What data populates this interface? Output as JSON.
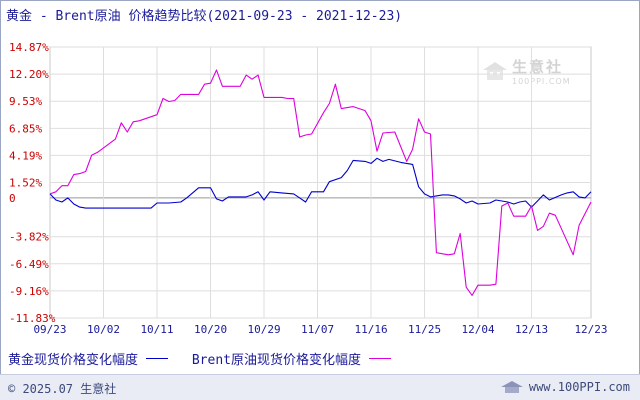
{
  "page": {
    "title": "黄金 - Brent原油 价格趋势比较(2021-09-23 - 2021-12-23)",
    "copyright": "© 2025.07 生意社",
    "site": "www.100PPI.com",
    "watermark": {
      "cn": "生意社",
      "en": "100PPI.COM"
    }
  },
  "chart_data": {
    "type": "line",
    "title": "黄金 - Brent原油 价格趋势比较(2021-09-23 - 2021-12-23)",
    "xlabel": "",
    "ylabel": "",
    "ylim": [
      -11.83,
      14.87
    ],
    "y_ticks": [
      "14.87%",
      "12.20%",
      "9.53%",
      "6.85%",
      "4.19%",
      "1.52%",
      "0",
      "-3.82%",
      "-6.49%",
      "-9.16%",
      "-11.83%"
    ],
    "y_tick_values": [
      14.87,
      12.2,
      9.53,
      6.85,
      4.19,
      1.52,
      0,
      -3.82,
      -6.49,
      -9.16,
      -11.83
    ],
    "x_ticks": [
      "09/23",
      "10/02",
      "10/11",
      "10/20",
      "10/29",
      "11/07",
      "11/16",
      "11/25",
      "12/04",
      "12/13",
      "12/23"
    ],
    "x_range": [
      "2021-09-23",
      "2021-12-23"
    ],
    "grid": true,
    "legend_position": "bottom",
    "series": [
      {
        "name": "黄金现货价格变化幅度",
        "color": "#0000cc",
        "points": [
          [
            "2021-09-23",
            0.4
          ],
          [
            "2021-09-24",
            -0.2
          ],
          [
            "2021-09-25",
            -0.4
          ],
          [
            "2021-09-26",
            0.0
          ],
          [
            "2021-09-27",
            -0.6
          ],
          [
            "2021-09-28",
            -0.9
          ],
          [
            "2021-09-29",
            -1.0
          ],
          [
            "2021-10-01",
            -1.0
          ],
          [
            "2021-10-04",
            -1.0
          ],
          [
            "2021-10-07",
            -1.0
          ],
          [
            "2021-10-10",
            -1.0
          ],
          [
            "2021-10-11",
            -0.5
          ],
          [
            "2021-10-13",
            -0.5
          ],
          [
            "2021-10-15",
            -0.4
          ],
          [
            "2021-10-16",
            0.0
          ],
          [
            "2021-10-18",
            1.0
          ],
          [
            "2021-10-20",
            1.0
          ],
          [
            "2021-10-21",
            -0.1
          ],
          [
            "2021-10-22",
            -0.3
          ],
          [
            "2021-10-23",
            0.1
          ],
          [
            "2021-10-26",
            0.1
          ],
          [
            "2021-10-27",
            0.3
          ],
          [
            "2021-10-28",
            0.6
          ],
          [
            "2021-10-29",
            -0.2
          ],
          [
            "2021-10-30",
            0.6
          ],
          [
            "2021-11-01",
            0.5
          ],
          [
            "2021-11-03",
            0.4
          ],
          [
            "2021-11-04",
            0.0
          ],
          [
            "2021-11-05",
            -0.4
          ],
          [
            "2021-11-06",
            0.6
          ],
          [
            "2021-11-08",
            0.6
          ],
          [
            "2021-11-09",
            1.6
          ],
          [
            "2021-11-11",
            2.0
          ],
          [
            "2021-11-12",
            2.7
          ],
          [
            "2021-11-13",
            3.7
          ],
          [
            "2021-11-15",
            3.6
          ],
          [
            "2021-11-16",
            3.4
          ],
          [
            "2021-11-17",
            3.9
          ],
          [
            "2021-11-18",
            3.6
          ],
          [
            "2021-11-19",
            3.8
          ],
          [
            "2021-11-21",
            3.5
          ],
          [
            "2021-11-23",
            3.3
          ],
          [
            "2021-11-24",
            1.1
          ],
          [
            "2021-11-25",
            0.4
          ],
          [
            "2021-11-26",
            0.1
          ],
          [
            "2021-11-28",
            0.3
          ],
          [
            "2021-11-29",
            0.3
          ],
          [
            "2021-11-30",
            0.2
          ],
          [
            "2021-12-01",
            -0.1
          ],
          [
            "2021-12-02",
            -0.5
          ],
          [
            "2021-12-03",
            -0.3
          ],
          [
            "2021-12-04",
            -0.6
          ],
          [
            "2021-12-06",
            -0.5
          ],
          [
            "2021-12-07",
            -0.2
          ],
          [
            "2021-12-08",
            -0.3
          ],
          [
            "2021-12-09",
            -0.4
          ],
          [
            "2021-12-10",
            -0.6
          ],
          [
            "2021-12-11",
            -0.4
          ],
          [
            "2021-12-12",
            -0.3
          ],
          [
            "2021-12-13",
            -0.9
          ],
          [
            "2021-12-14",
            -0.3
          ],
          [
            "2021-12-15",
            0.3
          ],
          [
            "2021-12-16",
            -0.2
          ],
          [
            "2021-12-18",
            0.3
          ],
          [
            "2021-12-19",
            0.5
          ],
          [
            "2021-12-20",
            0.6
          ],
          [
            "2021-12-21",
            0.1
          ],
          [
            "2021-12-22",
            0.0
          ],
          [
            "2021-12-23",
            0.6
          ]
        ]
      },
      {
        "name": "Brent原油现货价格变化幅度",
        "color": "#dd00dd",
        "points": [
          [
            "2021-09-23",
            0.4
          ],
          [
            "2021-09-24",
            0.6
          ],
          [
            "2021-09-25",
            1.2
          ],
          [
            "2021-09-26",
            1.2
          ],
          [
            "2021-09-27",
            2.3
          ],
          [
            "2021-09-28",
            2.4
          ],
          [
            "2021-09-29",
            2.6
          ],
          [
            "2021-09-30",
            4.2
          ],
          [
            "2021-10-01",
            4.5
          ],
          [
            "2021-10-04",
            5.8
          ],
          [
            "2021-10-05",
            7.4
          ],
          [
            "2021-10-06",
            6.5
          ],
          [
            "2021-10-07",
            7.5
          ],
          [
            "2021-10-08",
            7.6
          ],
          [
            "2021-10-11",
            8.2
          ],
          [
            "2021-10-12",
            9.8
          ],
          [
            "2021-10-13",
            9.5
          ],
          [
            "2021-10-14",
            9.6
          ],
          [
            "2021-10-15",
            10.2
          ],
          [
            "2021-10-18",
            10.2
          ],
          [
            "2021-10-19",
            11.2
          ],
          [
            "2021-10-20",
            11.3
          ],
          [
            "2021-10-21",
            12.6
          ],
          [
            "2021-10-22",
            11.0
          ],
          [
            "2021-10-25",
            11.0
          ],
          [
            "2021-10-26",
            12.1
          ],
          [
            "2021-10-27",
            11.7
          ],
          [
            "2021-10-28",
            12.1
          ],
          [
            "2021-10-29",
            9.9
          ],
          [
            "2021-11-01",
            9.9
          ],
          [
            "2021-11-02",
            9.8
          ],
          [
            "2021-11-03",
            9.8
          ],
          [
            "2021-11-04",
            6.0
          ],
          [
            "2021-11-05",
            6.2
          ],
          [
            "2021-11-06",
            6.3
          ],
          [
            "2021-11-08",
            8.4
          ],
          [
            "2021-11-09",
            9.3
          ],
          [
            "2021-11-10",
            11.2
          ],
          [
            "2021-11-11",
            8.8
          ],
          [
            "2021-11-12",
            8.9
          ],
          [
            "2021-11-13",
            9.0
          ],
          [
            "2021-11-15",
            8.6
          ],
          [
            "2021-11-16",
            7.6
          ],
          [
            "2021-11-17",
            4.6
          ],
          [
            "2021-11-18",
            6.4
          ],
          [
            "2021-11-20",
            6.5
          ],
          [
            "2021-11-22",
            3.6
          ],
          [
            "2021-11-23",
            4.8
          ],
          [
            "2021-11-24",
            7.8
          ],
          [
            "2021-11-25",
            6.5
          ],
          [
            "2021-11-26",
            6.3
          ],
          [
            "2021-11-27",
            -5.4
          ],
          [
            "2021-11-29",
            -5.6
          ],
          [
            "2021-11-30",
            -5.5
          ],
          [
            "2021-12-01",
            -3.5
          ],
          [
            "2021-12-02",
            -8.8
          ],
          [
            "2021-12-03",
            -9.6
          ],
          [
            "2021-12-04",
            -8.6
          ],
          [
            "2021-12-06",
            -8.6
          ],
          [
            "2021-12-07",
            -8.5
          ],
          [
            "2021-12-08",
            -0.8
          ],
          [
            "2021-12-09",
            -0.5
          ],
          [
            "2021-12-10",
            -1.8
          ],
          [
            "2021-12-12",
            -1.8
          ],
          [
            "2021-12-13",
            -0.8
          ],
          [
            "2021-12-14",
            -3.2
          ],
          [
            "2021-12-15",
            -2.8
          ],
          [
            "2021-12-16",
            -1.5
          ],
          [
            "2021-12-17",
            -1.7
          ],
          [
            "2021-12-20",
            -5.6
          ],
          [
            "2021-12-21",
            -2.7
          ],
          [
            "2021-12-23",
            -0.4
          ]
        ]
      }
    ]
  },
  "legend": {
    "gold_label": "黄金现货价格变化幅度",
    "brent_label": "Brent原油现货价格变化幅度"
  }
}
